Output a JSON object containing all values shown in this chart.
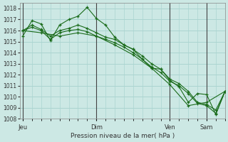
{
  "bg_color": "#cce8e4",
  "grid_color": "#aad4d0",
  "line_color": "#1a6b1a",
  "marker_color": "#1a6b1a",
  "xlabel": "Pression niveau de la mer( hPa )",
  "ylim": [
    1008,
    1018.5
  ],
  "yticks": [
    1008,
    1009,
    1010,
    1011,
    1012,
    1013,
    1014,
    1015,
    1016,
    1017,
    1018
  ],
  "xtick_labels": [
    "Jeu",
    "Dim",
    "Ven",
    "Sam"
  ],
  "xtick_positions": [
    0,
    24,
    48,
    60
  ],
  "vline_positions": [
    0,
    24,
    48,
    60
  ],
  "xlim": [
    -1,
    66
  ],
  "series": [
    {
      "x": [
        0,
        3,
        6,
        9,
        12,
        15,
        18,
        21,
        24,
        27,
        30,
        33,
        36,
        39,
        42,
        45,
        48,
        51,
        54,
        57,
        60,
        63,
        66
      ],
      "y": [
        1015.5,
        1016.9,
        1016.6,
        1015.1,
        1016.5,
        1017.0,
        1017.3,
        1018.1,
        1017.1,
        1016.5,
        1015.4,
        1014.7,
        1014.3,
        1013.4,
        1012.6,
        1012.5,
        1011.5,
        1010.9,
        1009.5,
        1010.3,
        1010.2,
        1008.4,
        1010.5
      ]
    },
    {
      "x": [
        0,
        3,
        6,
        9,
        12,
        15,
        18,
        21,
        24,
        27,
        30,
        33,
        36,
        39,
        42,
        45,
        48,
        51,
        54,
        57,
        60,
        63,
        66
      ],
      "y": [
        1016.0,
        1016.5,
        1016.1,
        1015.5,
        1016.0,
        1016.2,
        1016.5,
        1016.2,
        1015.8,
        1015.4,
        1015.2,
        1014.7,
        1014.3,
        1013.7,
        1013.0,
        1012.5,
        1011.6,
        1011.2,
        1010.5,
        1009.5,
        1009.3,
        1008.8,
        1010.5
      ]
    },
    {
      "x": [
        0,
        3,
        6,
        9,
        12,
        15,
        18,
        21,
        24,
        27,
        30,
        33,
        36,
        39,
        42,
        45,
        48,
        51,
        54,
        57,
        60,
        63,
        66
      ],
      "y": [
        1016.0,
        1016.3,
        1016.0,
        1015.2,
        1015.8,
        1016.0,
        1016.1,
        1015.9,
        1015.5,
        1015.2,
        1014.9,
        1014.5,
        1014.0,
        1013.4,
        1012.7,
        1012.2,
        1011.4,
        1011.0,
        1010.3,
        1009.4,
        1009.2,
        1008.5,
        1010.5
      ]
    },
    {
      "x": [
        0,
        6,
        12,
        18,
        24,
        30,
        36,
        42,
        48,
        54,
        60,
        66
      ],
      "y": [
        1016.0,
        1015.8,
        1015.5,
        1015.8,
        1015.5,
        1014.7,
        1013.8,
        1012.6,
        1011.1,
        1009.2,
        1009.5,
        1010.5
      ]
    }
  ],
  "minor_x_step": 3
}
